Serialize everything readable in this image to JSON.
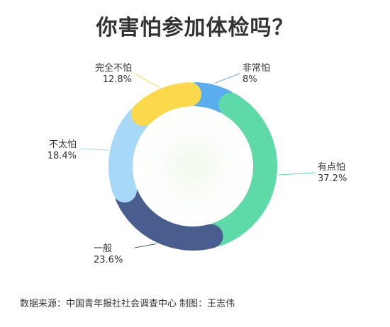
{
  "chart_data": {
    "type": "pie",
    "title": "你害怕参加体检吗？",
    "slices": [
      {
        "label": "非常怕",
        "value": 8.0,
        "value_label": "8%",
        "color": "#5aaef0"
      },
      {
        "label": "有点怕",
        "value": 37.2,
        "value_label": "37.2%",
        "color": "#5ed9a8"
      },
      {
        "label": "一般",
        "value": 23.6,
        "value_label": "23.6%",
        "color": "#4a5d8f"
      },
      {
        "label": "不太怕",
        "value": 18.4,
        "value_label": "18.4%",
        "color": "#a8d8f8"
      },
      {
        "label": "完全不怕",
        "value": 12.8,
        "value_label": "12.8%",
        "color": "#fcd94a"
      }
    ]
  },
  "source": "数据来源：中国青年报社社会调查中心 制图：王志伟"
}
